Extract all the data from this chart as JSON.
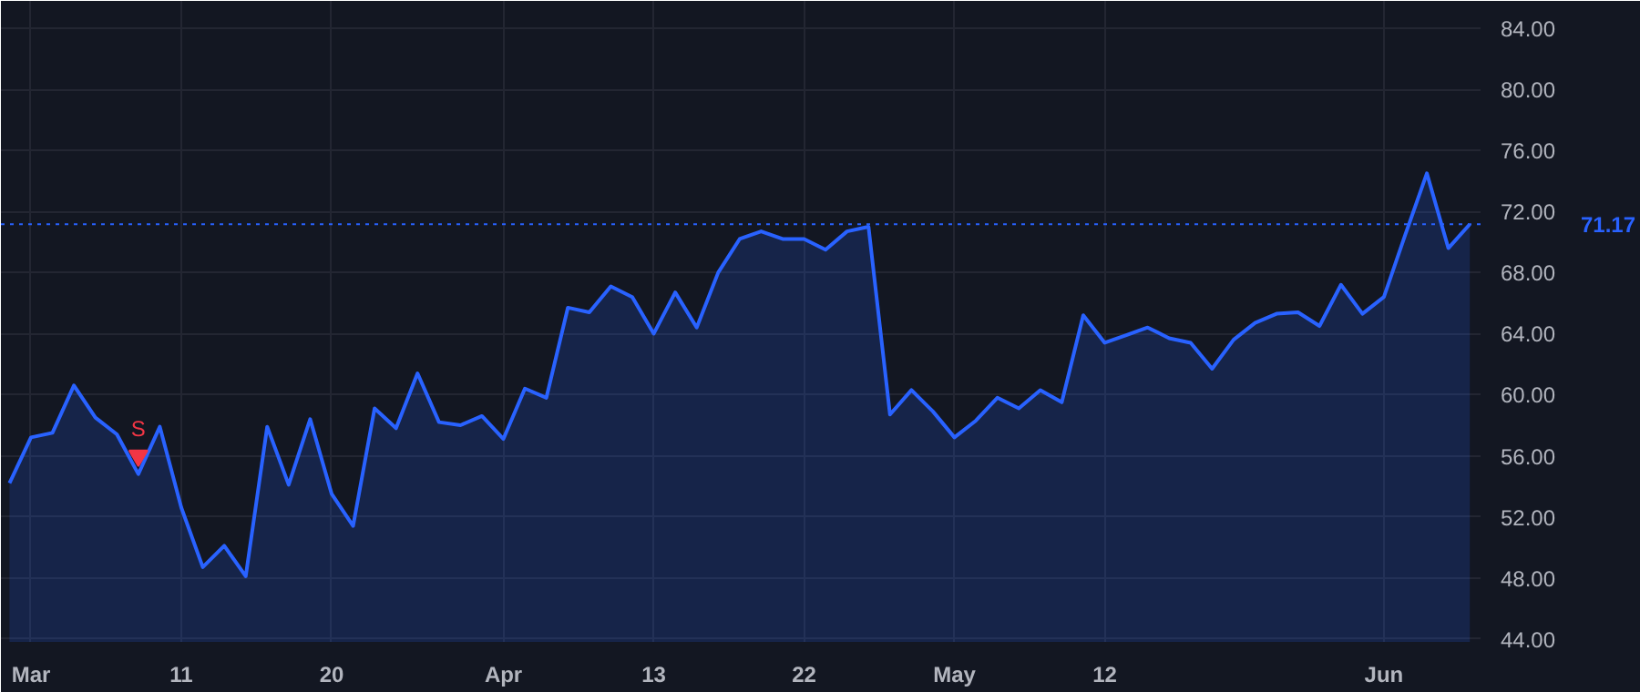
{
  "chart_data": {
    "type": "area",
    "categories": [
      null,
      "Mar",
      null,
      null,
      null,
      null,
      null,
      null,
      "11",
      null,
      null,
      null,
      null,
      null,
      null,
      "20",
      null,
      null,
      null,
      null,
      null,
      null,
      null,
      "Apr",
      null,
      null,
      null,
      null,
      null,
      null,
      "13",
      null,
      null,
      null,
      null,
      null,
      null,
      "22",
      null,
      null,
      null,
      null,
      null,
      null,
      "May",
      null,
      null,
      null,
      null,
      null,
      null,
      "12",
      null,
      null,
      null,
      null,
      null,
      null,
      null,
      null,
      null,
      null,
      null,
      null,
      "Jun",
      null,
      null,
      null,
      null
    ],
    "series": [
      {
        "color": "#2962ff",
        "values": [
          54.2,
          57.2,
          57.5,
          60.6,
          58.5,
          57.4,
          54.8,
          57.9,
          52.6,
          48.7,
          50.1,
          48.1,
          57.9,
          54.1,
          58.4,
          53.5,
          51.4,
          59.1,
          57.8,
          61.4,
          58.2,
          58.0,
          58.6,
          57.1,
          60.4,
          59.8,
          65.7,
          65.4,
          67.1,
          66.4,
          64.0,
          66.7,
          64.4,
          68.0,
          70.2,
          70.7,
          70.2,
          70.2,
          69.5,
          70.7,
          71.0,
          58.7,
          60.3,
          58.9,
          57.2,
          58.3,
          59.8,
          59.1,
          60.3,
          59.5,
          65.2,
          63.4,
          63.9,
          64.4,
          63.7,
          63.4,
          61.7,
          63.6,
          64.7,
          65.3,
          65.4,
          64.5,
          67.2,
          65.3,
          66.4,
          70.5,
          74.5,
          69.6,
          71.17
        ]
      },
      {
        "type": "scatter",
        "color": "#f23645",
        "marker": "triangle",
        "values": [
          null,
          null,
          null,
          null,
          null,
          null,
          56.0,
          null,
          null,
          null,
          null,
          null,
          null,
          null,
          null,
          null,
          null,
          null,
          null,
          null,
          null,
          null,
          null,
          null,
          null,
          null,
          null,
          null,
          null,
          null,
          null,
          null,
          null,
          null,
          null,
          null,
          null,
          null,
          null,
          null,
          null,
          null,
          null,
          null,
          null,
          null,
          null,
          null,
          null,
          null,
          null,
          null,
          null,
          null,
          null,
          null,
          null,
          null,
          null,
          null,
          null,
          null,
          null,
          null,
          null,
          null,
          null,
          null,
          null
        ]
      }
    ],
    "annotations": [
      "S"
    ],
    "ylim": [
      43.8,
      85.8
    ],
    "yticks": [
      {
        "value": 44,
        "label": "44.00"
      },
      {
        "value": 48,
        "label": "48.00"
      },
      {
        "value": 52,
        "label": "52.00"
      },
      {
        "value": 56,
        "label": "56.00"
      },
      {
        "value": 60,
        "label": "60.00"
      },
      {
        "value": 64,
        "label": "64.00"
      },
      {
        "value": 68,
        "label": "68.00"
      },
      {
        "value": 72,
        "label": "72.00"
      },
      {
        "value": 76,
        "label": "76.00"
      },
      {
        "value": 80,
        "label": "80.00"
      },
      {
        "value": 84,
        "label": "84.00"
      }
    ],
    "ref_lines": [
      {
        "axis": "y",
        "value": 71.17,
        "label": "71.17",
        "color": "#2962ff",
        "line_style": "dotted"
      }
    ],
    "grid": true
  }
}
